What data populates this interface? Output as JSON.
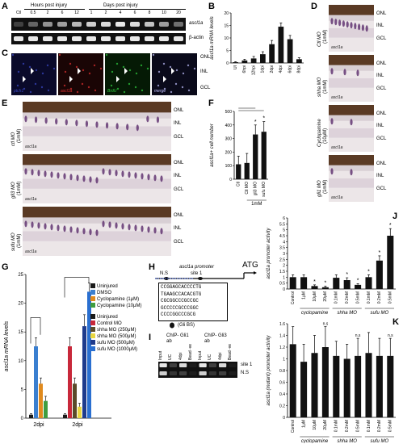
{
  "panels": {
    "A": {
      "label": "A",
      "group_hours": "Hours post injury",
      "group_days": "Days post injury",
      "lanes": [
        "Ctl",
        "0.5",
        "2",
        "6",
        "12",
        "1",
        "2",
        "4",
        "6",
        "8",
        "10",
        "20"
      ],
      "rows": [
        "ascl1a",
        "β-actin"
      ]
    },
    "B": {
      "label": "B"
    },
    "C": {
      "label": "C",
      "channels": [
        "ptch1",
        "ascl1a",
        "BrdU",
        "merge"
      ],
      "layers": [
        "ONL",
        "INL",
        "GCL"
      ]
    },
    "D": {
      "label": "D",
      "rows": [
        {
          "cond": "Ctl MO",
          "dose": "(1mM)",
          "stain": "ascl1a"
        },
        {
          "cond": "shha MO",
          "dose": "(1mM)",
          "stain": "ascl1a"
        },
        {
          "cond": "Cyclopamine",
          "dose": "(10μM)",
          "stain": "ascl1a"
        },
        {
          "cond": "gli1 MO",
          "dose": "(1mM)",
          "stain": "ascl1a"
        }
      ],
      "layers": [
        "ONL",
        "INL",
        "GCL"
      ]
    },
    "E": {
      "label": "E",
      "rows": [
        {
          "cond": "ctl MO",
          "dose": "(1mM)",
          "stain": "ascl1a"
        },
        {
          "cond": "gli3 MO",
          "dose": "(1mM)",
          "stain": "ascl1a"
        },
        {
          "cond": "sufu MO",
          "dose": "(1mM)",
          "stain": "ascl1a"
        }
      ],
      "layers": [
        "ONL",
        "INL",
        "GCL"
      ]
    },
    "F": {
      "label": "F"
    },
    "G": {
      "label": "G"
    },
    "H": {
      "label": "H",
      "title": "ascl1a promoter",
      "ns": "N.S",
      "site": "site 1",
      "atg": "ATG",
      "seq": [
        "CCGGAGCACCCCTG",
        "TGAAGCCACACGTG",
        "CGCGGCCCGCCGC",
        "GCCCCCGCCCGGC",
        "CCCCGGCCCGCG"
      ],
      "legend": "(Gli BS)"
    },
    "I": {
      "label": "I",
      "ab1": "ChIP- Gli1 ab",
      "ab2": "ChIP- Gli3 ab",
      "lanes": [
        "Input",
        "UC",
        "4dpi",
        "Bead -ve",
        "Input",
        "UC",
        "4dpi",
        "Bead -ve"
      ],
      "rows": [
        "site 1",
        "N.S"
      ]
    },
    "J": {
      "label": "J"
    },
    "K": {
      "label": "K"
    }
  },
  "chart_data": [
    {
      "id": "B",
      "type": "bar",
      "ylabel": "ascl1a mRNA levels",
      "categories": [
        "UI",
        "6hpi",
        "12hpi",
        "1dpi",
        "2dpi",
        "4dpi",
        "6dpi",
        "8dpi"
      ],
      "values": [
        0.3,
        1,
        1.8,
        3.5,
        7.5,
        14.5,
        9.5,
        1.5
      ],
      "errors": [
        0.2,
        0.5,
        0.8,
        1,
        1.5,
        1.5,
        1.5,
        0.6
      ],
      "ylim": [
        0,
        20
      ],
      "yticks": [
        0,
        5,
        10,
        15,
        20
      ]
    },
    {
      "id": "F",
      "type": "bar",
      "ylabel": "ascl1a+ cell number",
      "categories": [
        "Ctl",
        "Ctl MO",
        "gli3 MO",
        "sufu MO"
      ],
      "group_label": "1mM",
      "values": [
        110,
        120,
        330,
        350
      ],
      "errors": [
        60,
        70,
        70,
        75
      ],
      "ylim": [
        0,
        500
      ],
      "yticks": [
        0,
        100,
        200,
        300,
        400,
        500
      ],
      "significance": [
        "",
        "",
        "*",
        "*"
      ]
    },
    {
      "id": "G",
      "type": "bar",
      "ylabel": "ascl1a mRNA levels",
      "ylim": [
        0,
        25
      ],
      "yticks": [
        0,
        5,
        10,
        15,
        20,
        25
      ],
      "groups": [
        "2dpi",
        "2dpi"
      ],
      "series": [
        {
          "name": "Uninjured",
          "color": "#1a1a1a",
          "group": 0,
          "value": 0.6,
          "error": 0.2
        },
        {
          "name": "DMSO",
          "color": "#3a7fd0",
          "group": 0,
          "value": 12.5,
          "error": 1.5
        },
        {
          "name": "Cyclopamine (1μM)",
          "color": "#e08a1e",
          "group": 0,
          "value": 6,
          "error": 1
        },
        {
          "name": "Cyclopamine (10μM)",
          "color": "#3f9d3f",
          "group": 0,
          "value": 3,
          "error": 0.8
        },
        {
          "name": "Uninjured",
          "color": "#1a1a1a",
          "group": 1,
          "value": 0.6,
          "error": 0.2
        },
        {
          "name": "Control MO",
          "color": "#c8283a",
          "group": 1,
          "value": 12.5,
          "error": 1.5
        },
        {
          "name": "shha MO (250μM)",
          "color": "#5a4a2a",
          "group": 1,
          "value": 6,
          "error": 1
        },
        {
          "name": "shha MO (500μM)",
          "color": "#e8d640",
          "group": 1,
          "value": 2,
          "error": 0.6
        },
        {
          "name": "sufu MO (500μM)",
          "color": "#1f3b8c",
          "group": 1,
          "value": 16,
          "error": 2
        },
        {
          "name": "sufu MO (1000μM)",
          "color": "#2a6fd0",
          "group": 1,
          "value": 22,
          "error": 1.5
        }
      ],
      "legend": [
        "Uninjured",
        "DMSO",
        "Cyclopamine (1μM)",
        "Cyclopamine (10μM)",
        "Uninjured",
        "Control MO",
        "shha MO (250μM)",
        "shha MO (500μM)",
        "sufu MO (500μM)",
        "sufu MO (1000μM)"
      ]
    },
    {
      "id": "J",
      "type": "bar",
      "ylabel": "ascl1a promoter activity",
      "categories": [
        "Control",
        "1μM",
        "10μM",
        "20μM",
        "0.1mM",
        "0.2mM",
        "0.5mM",
        "0.1mM",
        "0.2mM",
        "0.5mM"
      ],
      "group_labels": [
        "cyclopamine",
        "shha MO",
        "sufu MO"
      ],
      "values": [
        1,
        1,
        0.25,
        0.15,
        0.95,
        0.75,
        0.35,
        1,
        2.4,
        4.5
      ],
      "errors": [
        0.2,
        0.2,
        0.1,
        0.1,
        0.25,
        0.2,
        0.1,
        0.2,
        0.4,
        0.6
      ],
      "significance": [
        "",
        "",
        "*",
        "*",
        "",
        "*",
        "*",
        "*",
        "*",
        "*"
      ],
      "ylim": [
        0,
        6
      ],
      "yticks": [
        0,
        0.5,
        1,
        1.5,
        2,
        2.5,
        3,
        3.5,
        4,
        4.5,
        5,
        5.5,
        6
      ]
    },
    {
      "id": "K",
      "type": "bar",
      "ylabel": "ascl1a (mutant) promoter activity",
      "categories": [
        "Control",
        "1μM",
        "10μM",
        "20μM",
        "0.1mM",
        "0.2mM",
        "0.5mM",
        "0.1mM",
        "0.2mM",
        "0.5mM"
      ],
      "group_labels": [
        "cyclopamine",
        "shha MO",
        "sufu MO"
      ],
      "values": [
        1.25,
        0.95,
        1.1,
        1.2,
        1.05,
        1.0,
        1.05,
        1.1,
        1.05,
        1.05
      ],
      "errors": [
        0.3,
        0.3,
        0.3,
        0.35,
        0.25,
        0.25,
        0.3,
        0.35,
        0.3,
        0.3
      ],
      "significance": [
        "",
        "",
        "",
        "n.s",
        "",
        "",
        "n.s",
        "",
        "",
        "n.s"
      ],
      "ylim": [
        0,
        1.6
      ],
      "yticks": [
        0,
        0.2,
        0.4,
        0.6,
        0.8,
        1.0,
        1.2,
        1.4,
        1.6
      ]
    }
  ]
}
